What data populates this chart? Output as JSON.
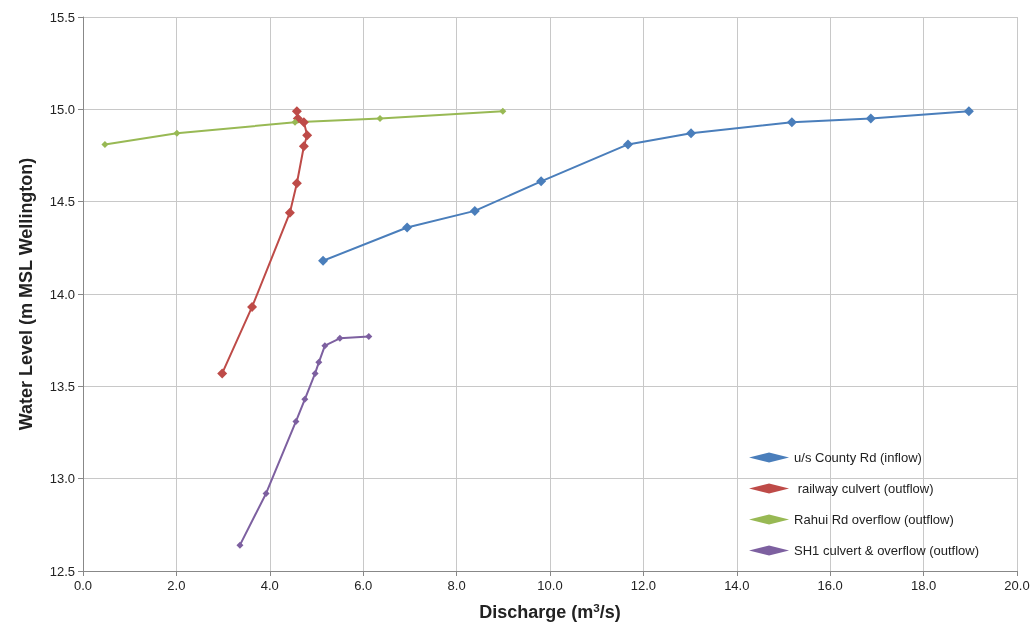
{
  "chart_data": {
    "type": "line",
    "xlabel": "Discharge (m$^{3}$/s)",
    "ylabel": "Water Level (m MSL Wellington)",
    "xlim": [
      0,
      20
    ],
    "xticks": [
      {
        "value": 0,
        "label": "0.0"
      },
      {
        "value": 2,
        "label": "2.0"
      },
      {
        "value": 4,
        "label": "4.0"
      },
      {
        "value": 6,
        "label": "6.0"
      },
      {
        "value": 8,
        "label": "8.0"
      },
      {
        "value": 10,
        "label": "10.0"
      },
      {
        "value": 12,
        "label": "12.0"
      },
      {
        "value": 14,
        "label": "14.0"
      },
      {
        "value": 16,
        "label": "16.0"
      },
      {
        "value": 18,
        "label": "18.0"
      },
      {
        "value": 20,
        "label": "20.0"
      }
    ],
    "ylim": [
      12.5,
      15.5
    ],
    "yticks": [
      12.5,
      {
        "value": 13,
        "label": "13.0"
      },
      13.5,
      {
        "value": 14,
        "label": "14.0"
      },
      14.5,
      {
        "value": 15,
        "label": "15.0"
      },
      15.5
    ],
    "grid": true,
    "legend": "bottom right",
    "marker": "diamond",
    "line_style": "solid",
    "series": [
      {
        "name": "u/s County Rd (inflow)",
        "color": "#4a7ebb",
        "x": [
          5.14,
          6.94,
          8.39,
          9.81,
          11.67,
          13.02,
          15.18,
          16.87,
          18.97
        ],
        "values": [
          14.18,
          14.36,
          14.45,
          14.61,
          14.81,
          14.87,
          14.93,
          14.95,
          14.99
        ]
      },
      {
        "name": " railway culvert (outflow)",
        "color": "#be4b48",
        "x": [
          2.98,
          3.62,
          4.43,
          4.58,
          4.73,
          4.8,
          4.73,
          4.6,
          4.58
        ],
        "values": [
          13.57,
          13.93,
          14.44,
          14.6,
          14.8,
          14.86,
          14.93,
          14.95,
          14.99
        ]
      },
      {
        "name": "Rahui Rd overflow (outflow)",
        "color": "#98b954",
        "x": [
          0.47,
          2.01,
          4.54,
          6.36,
          8.99
        ],
        "values": [
          14.81,
          14.87,
          14.93,
          14.95,
          14.99
        ]
      },
      {
        "name": "SH1 culvert & overflow (outflow)",
        "color": "#7d60a0",
        "x": [
          3.36,
          3.92,
          4.56,
          4.75,
          4.97,
          5.05,
          5.18,
          5.5,
          6.12
        ],
        "values": [
          12.64,
          12.92,
          13.31,
          13.43,
          13.57,
          13.63,
          13.72,
          13.76,
          13.77
        ]
      }
    ]
  }
}
